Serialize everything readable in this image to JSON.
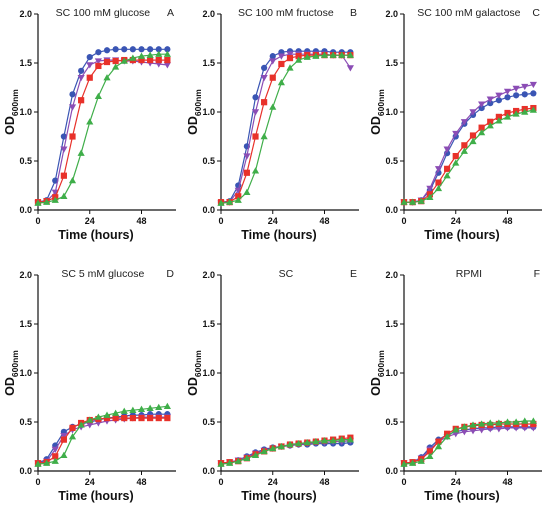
{
  "chart_data": [
    {
      "type": "line",
      "title": "SC 100 mM glucose",
      "panel_label": "A",
      "xlabel": "Time (hours)",
      "ylabel": "OD",
      "ylabel_sub": "600nm",
      "xlim": [
        0,
        64
      ],
      "ylim": [
        0,
        2.0
      ],
      "xticks": [
        "0",
        "24",
        "48"
      ],
      "yticks": [
        "0.0",
        "0.5",
        "1.0",
        "1.5",
        "2.0"
      ],
      "x": [
        0,
        4,
        8,
        12,
        16,
        20,
        24,
        28,
        32,
        36,
        40,
        44,
        48,
        52,
        56,
        60
      ],
      "series": [
        {
          "marker": "circle",
          "color": "#3a55b4",
          "values": [
            0.08,
            0.1,
            0.3,
            0.75,
            1.18,
            1.42,
            1.56,
            1.61,
            1.63,
            1.64,
            1.64,
            1.64,
            1.64,
            1.64,
            1.64,
            1.64
          ]
        },
        {
          "marker": "triangle-down",
          "color": "#8b4db5",
          "values": [
            0.07,
            0.09,
            0.18,
            0.62,
            1.05,
            1.35,
            1.48,
            1.52,
            1.53,
            1.53,
            1.52,
            1.52,
            1.51,
            1.5,
            1.49,
            1.48
          ]
        },
        {
          "marker": "square",
          "color": "#e8312a",
          "values": [
            0.08,
            0.09,
            0.13,
            0.35,
            0.75,
            1.12,
            1.35,
            1.47,
            1.51,
            1.52,
            1.53,
            1.53,
            1.53,
            1.53,
            1.53,
            1.53
          ]
        },
        {
          "marker": "triangle-up",
          "color": "#3fae49",
          "values": [
            0.07,
            0.08,
            0.1,
            0.14,
            0.3,
            0.58,
            0.9,
            1.16,
            1.35,
            1.46,
            1.52,
            1.55,
            1.57,
            1.58,
            1.59,
            1.59
          ]
        }
      ]
    },
    {
      "type": "line",
      "title": "SC 100 mM fructose",
      "panel_label": "B",
      "xlabel": "Time (hours)",
      "ylabel": "OD",
      "ylabel_sub": "600nm",
      "xlim": [
        0,
        64
      ],
      "ylim": [
        0,
        2.0
      ],
      "xticks": [
        "0",
        "24",
        "48"
      ],
      "yticks": [
        "0.0",
        "0.5",
        "1.0",
        "1.5",
        "2.0"
      ],
      "x": [
        0,
        4,
        8,
        12,
        16,
        20,
        24,
        28,
        32,
        36,
        40,
        44,
        48,
        52,
        56,
        60
      ],
      "series": [
        {
          "marker": "circle",
          "color": "#3a55b4",
          "values": [
            0.08,
            0.09,
            0.25,
            0.65,
            1.15,
            1.45,
            1.57,
            1.61,
            1.62,
            1.62,
            1.62,
            1.62,
            1.62,
            1.61,
            1.61,
            1.61
          ]
        },
        {
          "marker": "triangle-down",
          "color": "#8b4db5",
          "values": [
            0.07,
            0.08,
            0.2,
            0.55,
            1.0,
            1.35,
            1.52,
            1.57,
            1.59,
            1.59,
            1.59,
            1.59,
            1.59,
            1.58,
            1.58,
            1.45
          ]
        },
        {
          "marker": "square",
          "color": "#e8312a",
          "values": [
            0.08,
            0.08,
            0.14,
            0.38,
            0.75,
            1.1,
            1.35,
            1.49,
            1.55,
            1.57,
            1.58,
            1.58,
            1.58,
            1.58,
            1.58,
            1.58
          ]
        },
        {
          "marker": "triangle-up",
          "color": "#3fae49",
          "values": [
            0.07,
            0.08,
            0.1,
            0.18,
            0.4,
            0.75,
            1.05,
            1.3,
            1.45,
            1.53,
            1.56,
            1.57,
            1.58,
            1.58,
            1.58,
            1.58
          ]
        }
      ]
    },
    {
      "type": "line",
      "title": "SC 100 mM galactose",
      "panel_label": "C",
      "xlabel": "Time (hours)",
      "ylabel": "OD",
      "ylabel_sub": "600nm",
      "xlim": [
        0,
        64
      ],
      "ylim": [
        0,
        2.0
      ],
      "xticks": [
        "0",
        "24",
        "48"
      ],
      "yticks": [
        "0.0",
        "0.5",
        "1.0",
        "1.5",
        "2.0"
      ],
      "x": [
        0,
        4,
        8,
        12,
        16,
        20,
        24,
        28,
        32,
        36,
        40,
        44,
        48,
        52,
        56,
        60
      ],
      "series": [
        {
          "marker": "circle",
          "color": "#3a55b4",
          "values": [
            0.08,
            0.08,
            0.1,
            0.2,
            0.38,
            0.58,
            0.75,
            0.88,
            0.97,
            1.04,
            1.09,
            1.12,
            1.15,
            1.17,
            1.18,
            1.19
          ]
        },
        {
          "marker": "triangle-down",
          "color": "#8b4db5",
          "values": [
            0.08,
            0.08,
            0.1,
            0.22,
            0.42,
            0.62,
            0.78,
            0.9,
            1.0,
            1.08,
            1.13,
            1.17,
            1.21,
            1.24,
            1.26,
            1.28
          ]
        },
        {
          "marker": "square",
          "color": "#e8312a",
          "values": [
            0.08,
            0.08,
            0.09,
            0.16,
            0.28,
            0.42,
            0.55,
            0.66,
            0.76,
            0.84,
            0.9,
            0.95,
            0.99,
            1.01,
            1.03,
            1.04
          ]
        },
        {
          "marker": "triangle-up",
          "color": "#3fae49",
          "values": [
            0.08,
            0.08,
            0.09,
            0.13,
            0.22,
            0.35,
            0.48,
            0.6,
            0.7,
            0.79,
            0.86,
            0.91,
            0.95,
            0.98,
            1.0,
            1.02
          ]
        }
      ]
    },
    {
      "type": "line",
      "title": "SC 5 mM glucose",
      "panel_label": "D",
      "xlabel": "Time (hours)",
      "ylabel": "OD",
      "ylabel_sub": "600nm",
      "xlim": [
        0,
        64
      ],
      "ylim": [
        0,
        2.0
      ],
      "xticks": [
        "0",
        "24",
        "48"
      ],
      "yticks": [
        "0.0",
        "0.5",
        "1.0",
        "1.5",
        "2.0"
      ],
      "x": [
        0,
        4,
        8,
        12,
        16,
        20,
        24,
        28,
        32,
        36,
        40,
        44,
        48,
        52,
        56,
        60
      ],
      "series": [
        {
          "marker": "circle",
          "color": "#3a55b4",
          "values": [
            0.08,
            0.12,
            0.26,
            0.4,
            0.45,
            0.48,
            0.5,
            0.52,
            0.54,
            0.55,
            0.56,
            0.57,
            0.57,
            0.58,
            0.58,
            0.58
          ]
        },
        {
          "marker": "triangle-down",
          "color": "#8b4db5",
          "values": [
            0.08,
            0.1,
            0.22,
            0.36,
            0.42,
            0.45,
            0.47,
            0.49,
            0.51,
            0.52,
            0.53,
            0.54,
            0.55,
            0.55,
            0.55,
            0.55
          ]
        },
        {
          "marker": "square",
          "color": "#e8312a",
          "values": [
            0.08,
            0.09,
            0.15,
            0.32,
            0.44,
            0.49,
            0.52,
            0.53,
            0.54,
            0.54,
            0.54,
            0.54,
            0.54,
            0.54,
            0.54,
            0.54
          ]
        },
        {
          "marker": "triangle-up",
          "color": "#3fae49",
          "values": [
            0.07,
            0.08,
            0.1,
            0.16,
            0.35,
            0.47,
            0.52,
            0.55,
            0.57,
            0.59,
            0.61,
            0.62,
            0.63,
            0.64,
            0.65,
            0.66
          ]
        }
      ]
    },
    {
      "type": "line",
      "title": "SC",
      "panel_label": "E",
      "xlabel": "Time (hours)",
      "ylabel": "OD",
      "ylabel_sub": "600nm",
      "xlim": [
        0,
        64
      ],
      "ylim": [
        0,
        2.0
      ],
      "xticks": [
        "0",
        "24",
        "48"
      ],
      "yticks": [
        "0.0",
        "0.5",
        "1.0",
        "1.5",
        "2.0"
      ],
      "x": [
        0,
        4,
        8,
        12,
        16,
        20,
        24,
        28,
        32,
        36,
        40,
        44,
        48,
        52,
        56,
        60
      ],
      "series": [
        {
          "marker": "circle",
          "color": "#3a55b4",
          "values": [
            0.08,
            0.09,
            0.11,
            0.15,
            0.19,
            0.22,
            0.24,
            0.25,
            0.26,
            0.27,
            0.27,
            0.28,
            0.28,
            0.28,
            0.28,
            0.29
          ]
        },
        {
          "marker": "triangle-down",
          "color": "#8b4db5",
          "values": [
            0.08,
            0.09,
            0.11,
            0.14,
            0.18,
            0.21,
            0.23,
            0.25,
            0.26,
            0.27,
            0.28,
            0.29,
            0.29,
            0.3,
            0.3,
            0.31
          ]
        },
        {
          "marker": "square",
          "color": "#e8312a",
          "values": [
            0.08,
            0.09,
            0.1,
            0.13,
            0.17,
            0.2,
            0.23,
            0.25,
            0.27,
            0.28,
            0.29,
            0.3,
            0.31,
            0.32,
            0.33,
            0.34
          ]
        },
        {
          "marker": "triangle-up",
          "color": "#3fae49",
          "values": [
            0.07,
            0.08,
            0.1,
            0.13,
            0.16,
            0.2,
            0.23,
            0.25,
            0.27,
            0.28,
            0.29,
            0.3,
            0.31,
            0.31,
            0.32,
            0.32
          ]
        }
      ]
    },
    {
      "type": "line",
      "title": "RPMI",
      "panel_label": "F",
      "xlabel": "Time (hours)",
      "ylabel": "OD",
      "ylabel_sub": "600nm",
      "xlim": [
        0,
        64
      ],
      "ylim": [
        0,
        2.0
      ],
      "xticks": [
        "0",
        "24",
        "48"
      ],
      "yticks": [
        "0.0",
        "0.5",
        "1.0",
        "1.5",
        "2.0"
      ],
      "x": [
        0,
        4,
        8,
        12,
        16,
        20,
        24,
        28,
        32,
        36,
        40,
        44,
        48,
        52,
        56,
        60
      ],
      "series": [
        {
          "marker": "circle",
          "color": "#3a55b4",
          "values": [
            0.08,
            0.09,
            0.14,
            0.24,
            0.32,
            0.37,
            0.4,
            0.42,
            0.43,
            0.44,
            0.44,
            0.45,
            0.45,
            0.45,
            0.45,
            0.45
          ]
        },
        {
          "marker": "triangle-down",
          "color": "#8b4db5",
          "values": [
            0.08,
            0.09,
            0.13,
            0.22,
            0.3,
            0.35,
            0.38,
            0.4,
            0.41,
            0.42,
            0.43,
            0.43,
            0.44,
            0.44,
            0.44,
            0.44
          ]
        },
        {
          "marker": "square",
          "color": "#e8312a",
          "values": [
            0.08,
            0.09,
            0.12,
            0.2,
            0.3,
            0.38,
            0.43,
            0.45,
            0.46,
            0.47,
            0.47,
            0.48,
            0.48,
            0.48,
            0.48,
            0.48
          ]
        },
        {
          "marker": "triangle-up",
          "color": "#3fae49",
          "values": [
            0.07,
            0.08,
            0.1,
            0.15,
            0.25,
            0.35,
            0.42,
            0.45,
            0.47,
            0.48,
            0.49,
            0.49,
            0.5,
            0.5,
            0.51,
            0.51
          ]
        }
      ]
    }
  ]
}
